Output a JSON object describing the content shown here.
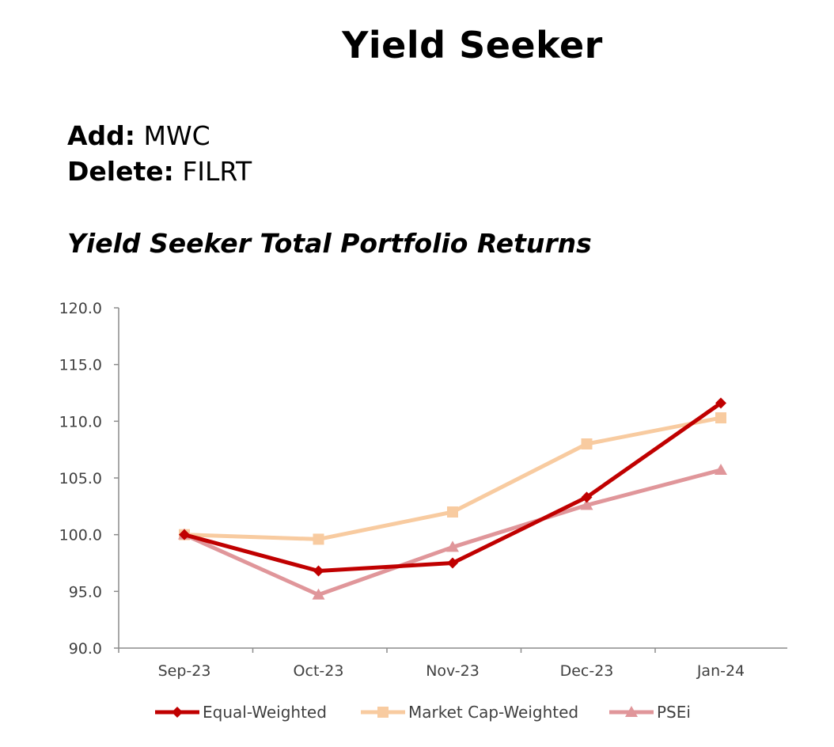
{
  "header": {
    "title": "Yield Seeker",
    "add_label": "Add:",
    "add_value": "MWC",
    "delete_label": "Delete:",
    "delete_value": "FILRT",
    "chart_title": "Yield Seeker Total Portfolio Returns"
  },
  "chart_data": {
    "type": "line",
    "title": "Yield Seeker Total Portfolio Returns",
    "xlabel": "",
    "ylabel": "",
    "categories": [
      "Sep-23",
      "Oct-23",
      "Nov-23",
      "Dec-23",
      "Jan-24"
    ],
    "ylim": [
      90,
      120
    ],
    "yticks": [
      "120.0",
      "115.0",
      "110.0",
      "105.0",
      "100.0",
      "95.0",
      "90.0"
    ],
    "grid": false,
    "legend_position": "bottom",
    "series": [
      {
        "name": "Equal-Weighted",
        "values": [
          100.0,
          96.8,
          97.5,
          103.3,
          111.6
        ],
        "color": "#c00000",
        "marker": "diamond"
      },
      {
        "name": "Market Cap-Weighted",
        "values": [
          100.0,
          99.6,
          102.0,
          108.0,
          110.3
        ],
        "color": "#f8cba0",
        "marker": "square"
      },
      {
        "name": "PSEi",
        "values": [
          100.0,
          94.7,
          98.9,
          102.6,
          105.7
        ],
        "color": "#e0969a",
        "marker": "triangle"
      }
    ]
  }
}
